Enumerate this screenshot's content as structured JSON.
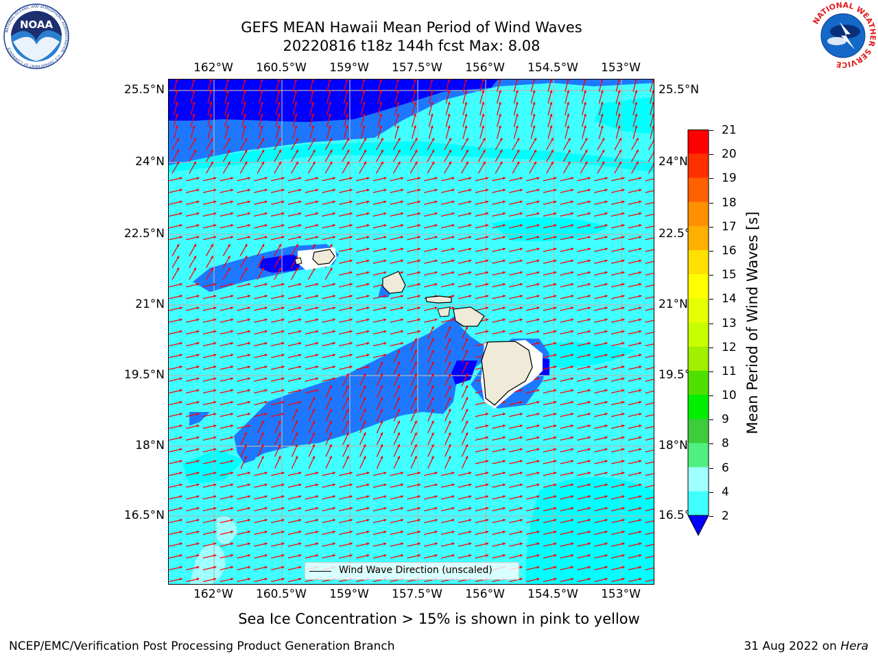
{
  "title": {
    "line1": "GEFS MEAN Hawaii Mean Period of Wind Waves",
    "line2": "20220816 t18z 144h fcst   Max: 8.08"
  },
  "logos": {
    "noaa": {
      "name": "NOAA",
      "ring_text": "NATIONAL OCEANIC AND ATMOSPHERIC ADMINISTRATION · U.S. DEPARTMENT OF COMMERCE"
    },
    "nws": {
      "ring_text": "NATIONAL WEATHER SERVICE"
    }
  },
  "map": {
    "lon_ticks": [
      "162°W",
      "160.5°W",
      "159°W",
      "157.5°W",
      "156°W",
      "154.5°W",
      "153°W"
    ],
    "lat_ticks": [
      "25.5°N",
      "24°N",
      "22.5°N",
      "21°N",
      "19.5°N",
      "18°N",
      "16.5°N"
    ],
    "lat_ticks_right": [
      "25.5°N",
      "24°N",
      "22.5°",
      "21°N",
      "19.5°",
      "18°N",
      "16.5°"
    ],
    "extent": {
      "lon_min": -163.0,
      "lon_max": -152.6,
      "lat_min": 15.2,
      "lat_max": 25.8
    },
    "arrow_color": "#ff0000",
    "land_color": "#efebd8",
    "legend_label": "Wind Wave Direction (unscaled)"
  },
  "colorbar": {
    "label": "Mean Period of Wind Waves [s]",
    "ticks": [
      "2",
      "4",
      "6",
      "8",
      "9",
      "10",
      "11",
      "12",
      "13",
      "14",
      "15",
      "16",
      "17",
      "18",
      "19",
      "20",
      "21"
    ],
    "colors": [
      "#0000ff",
      "#1e78ff",
      "#00ffff",
      "#40ffff",
      "#a0ffff",
      "#50f080",
      "#3ccc3c",
      "#00f000",
      "#50e000",
      "#a0f000",
      "#c8ff00",
      "#e6ff00",
      "#ffff00",
      "#ffe000",
      "#ffb000",
      "#ff9000",
      "#ff6000",
      "#ff3000",
      "#ff0000"
    ]
  },
  "ice_note": "Sea Ice Concentration > 15% is shown in pink to yellow",
  "footer": {
    "left": "NCEP/EMC/Verification Post Processing Product Generation Branch",
    "right_prefix": "31 Aug 2022 on ",
    "right_host": "Hera"
  }
}
